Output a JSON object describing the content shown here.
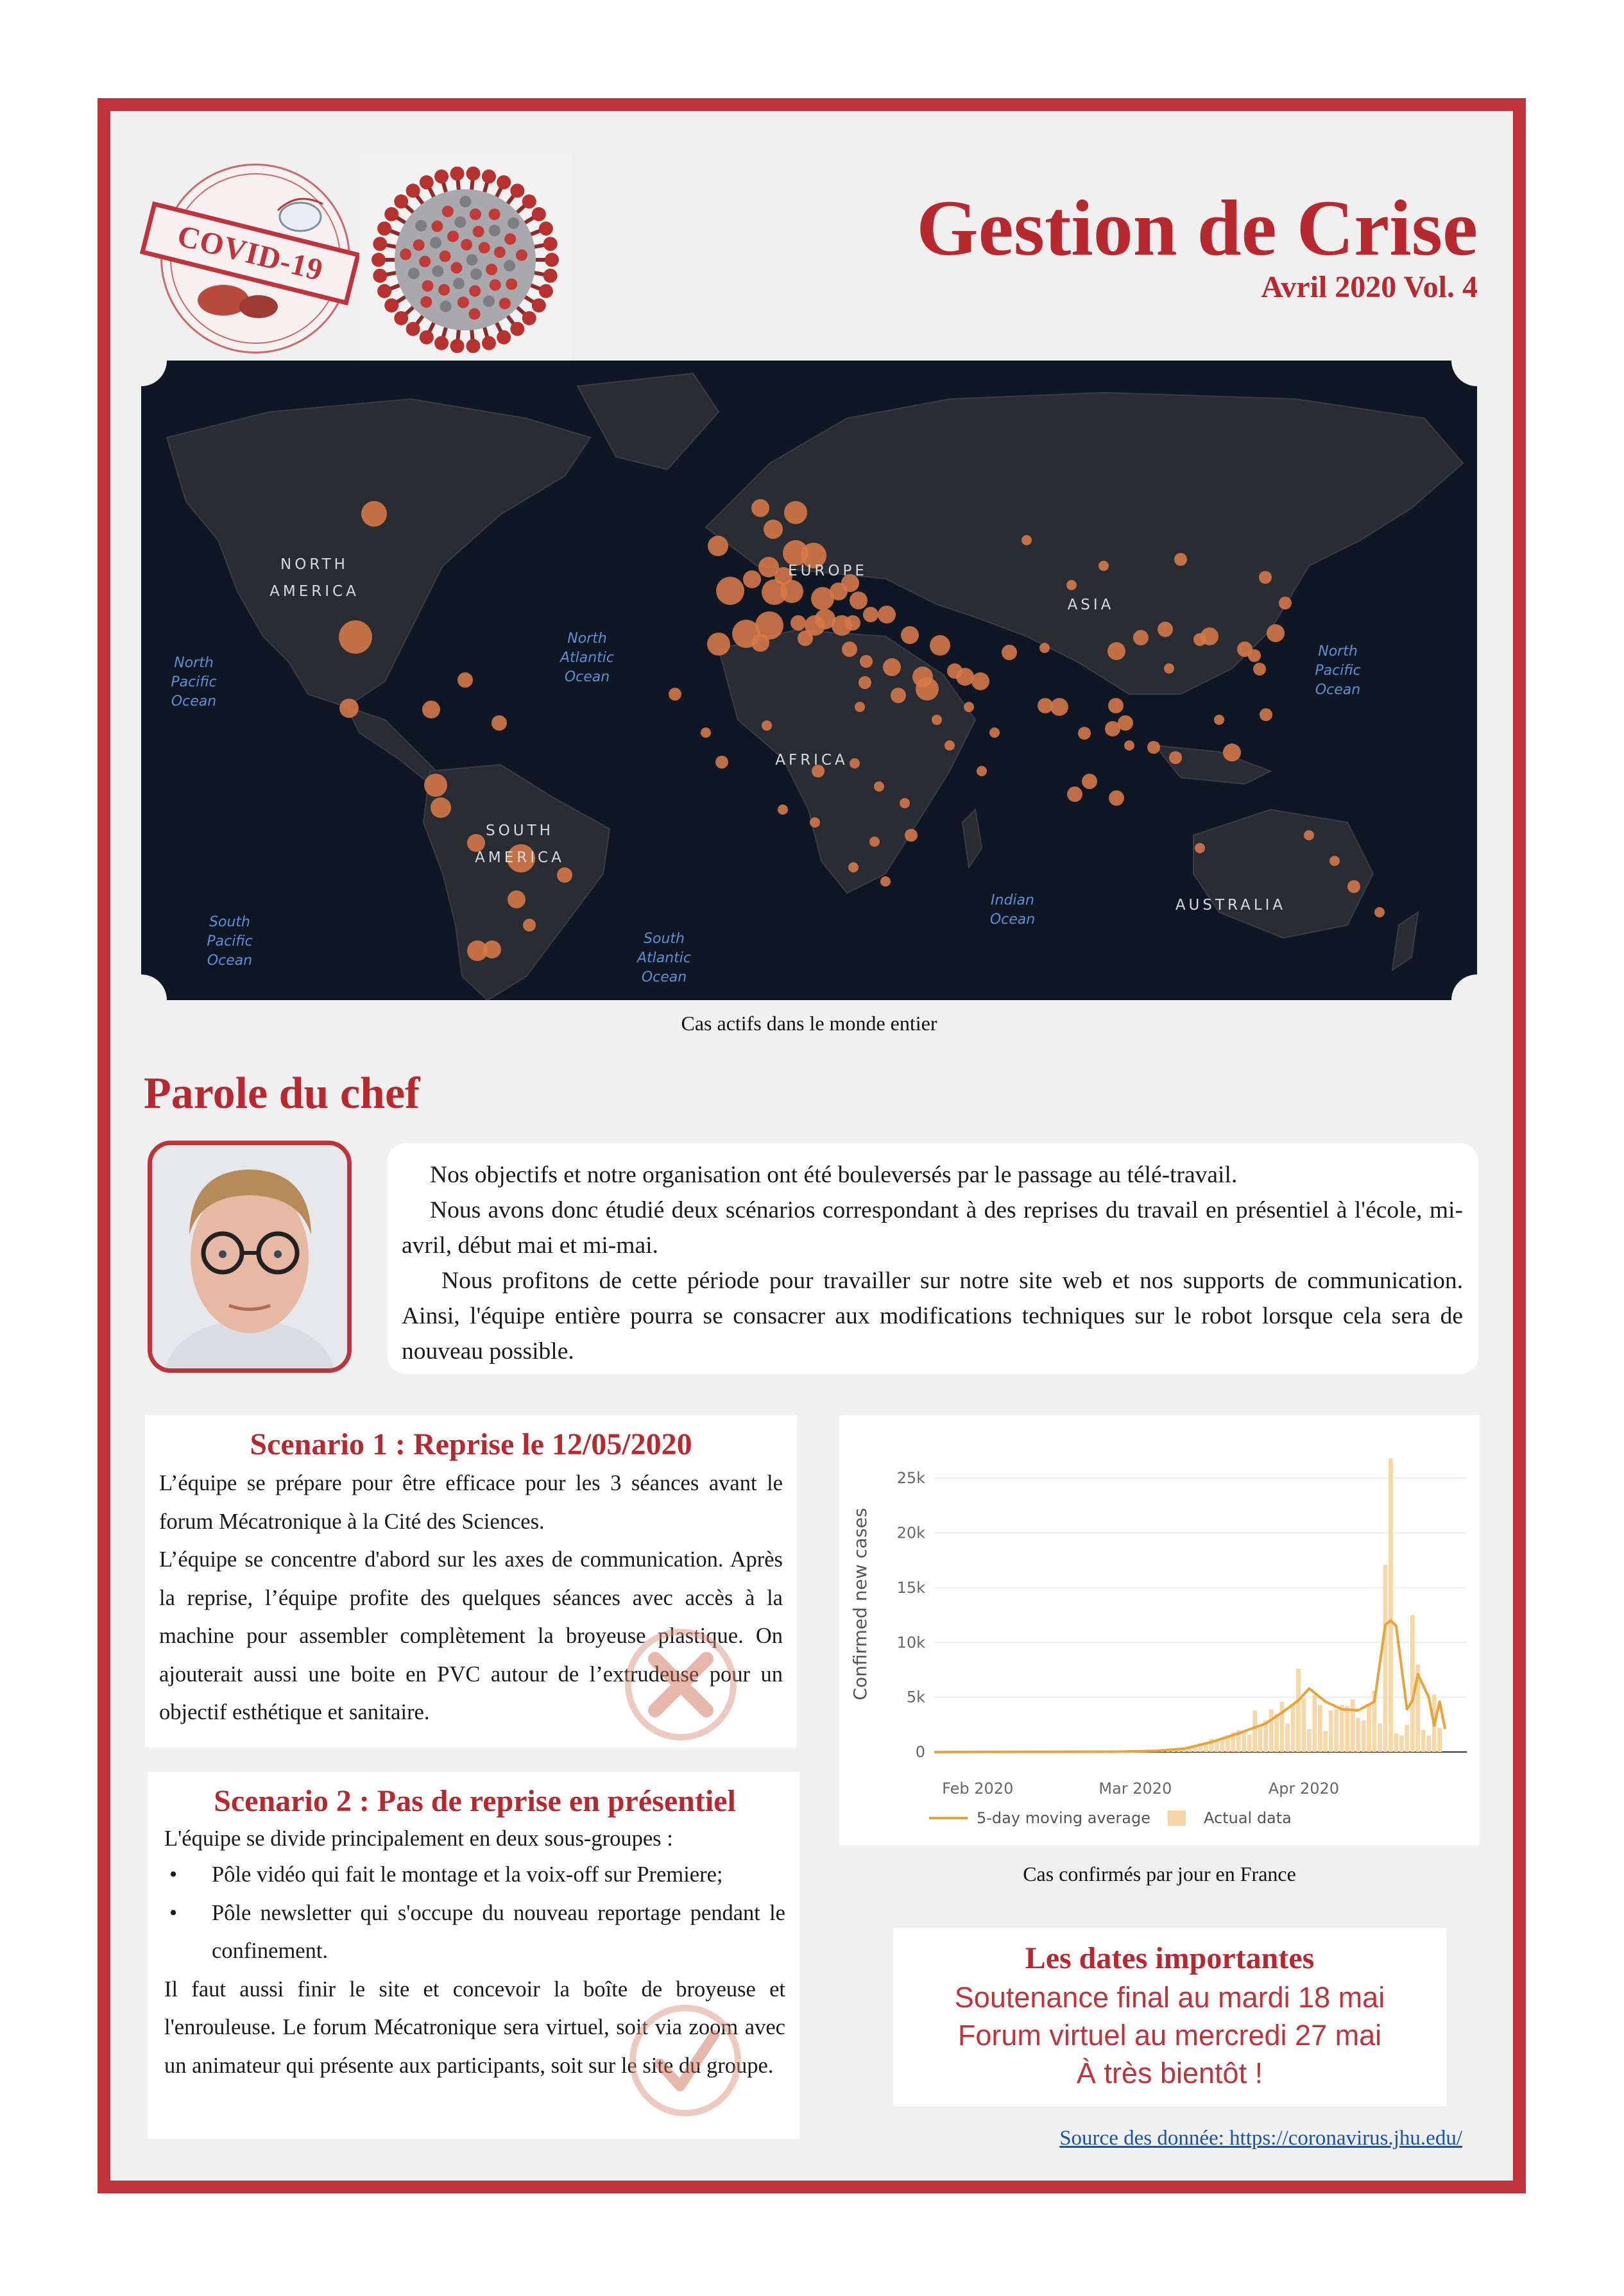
{
  "header": {
    "stamp_label": "COVID-19",
    "title": "Gestion de Crise",
    "issue": "Avril 2020  Vol. 4"
  },
  "map": {
    "caption": "Cas actifs dans le monde entier",
    "labels": {
      "north_america": "NORTH\nAMERICA",
      "south_america": "SOUTH\nAMERICA",
      "europe": "EUROPE",
      "asia": "ASIA",
      "africa": "AFRICA",
      "australia": "AUSTRALIA",
      "north_pacific_west": "North\nPacific\nOcean",
      "north_atlantic": "North\nAtlantic\nOcean",
      "north_pacific_east": "North\nPacific\nOcean",
      "south_pacific": "South\nPacific\nOcean",
      "south_atlantic": "South\nAtlantic\nOcean",
      "indian": "Indian\nOcean"
    },
    "colors": {
      "ocean": "#0f1725",
      "land": "#2a2c33",
      "bubble": "#d87a4a"
    }
  },
  "chef": {
    "section_title": "Parole du chef",
    "p1": "Nos objectifs et notre organisation ont été bouleversés par le passage au télé-travail.",
    "p2": "Nous avons donc étudié deux scénarios correspondant à des reprises du travail en présentiel à l'école, mi-avril, début mai et mi-mai.",
    "p3": "Nous profitons de cette période pour travailler sur notre site web et nos supports de communication. Ainsi, l'équipe entière pourra se consacrer aux modifications techniques sur le robot lorsque cela sera de nouveau possible."
  },
  "scenario1": {
    "title": "Scenario 1 : Reprise le 12/05/2020",
    "p1": "L’équipe se prépare pour être efficace pour les 3 séances avant le forum Mécatronique à la Cité des Sciences.",
    "p2": "L’équipe se concentre d'abord sur les axes de communication. Après la reprise, l’équipe profite des quelques séances avec accès à la machine pour assembler complètement la broyeuse plastique. On ajouterait aussi une boite en PVC autour de l’extrudeuse pour un objectif esthétique et sanitaire."
  },
  "scenario2": {
    "title": "Scenario 2 : Pas de reprise en présentiel",
    "intro": "L'équipe se divide principalement en deux sous-groupes :",
    "bullet": "•",
    "items": [
      "Pôle vidéo qui fait le montage et la voix-off sur Premiere;",
      "Pôle newsletter qui s'occupe du nouveau reportage pendant le confinement."
    ],
    "outro": "Il faut aussi finir le site et concevoir la boîte de broyeuse et l'enrouleuse. Le forum Mécatronique sera virtuel, soit via zoom avec un animateur qui présente aux participants, soit  sur le site du groupe."
  },
  "chart_caption": "Cas confirmés par jour en France",
  "chart_data": {
    "type": "bar",
    "title": "",
    "xlabel": "",
    "ylabel": "Confirmed new cases",
    "ylim": [
      0,
      27000
    ],
    "yticks": [
      "0",
      "5k",
      "10k",
      "15k",
      "20k",
      "25k"
    ],
    "ytick_values": [
      0,
      5000,
      10000,
      15000,
      20000,
      25000
    ],
    "xticks": [
      "Feb 2020",
      "Mar 2020",
      "Apr 2020"
    ],
    "xtick_positions": [
      "2020-02-01",
      "2020-03-01",
      "2020-04-01"
    ],
    "x_start": "2020-01-24",
    "x_end": "2020-05-01",
    "legend": [
      "5-day moving average",
      "Actual data"
    ],
    "legend_position": "bottom",
    "colors": {
      "line": "#e8a33a",
      "bars": "#f6d7a7"
    },
    "series": [
      {
        "name": "Actual data",
        "points": [
          [
            "2020-02-27",
            20
          ],
          [
            "2020-02-28",
            40
          ],
          [
            "2020-02-29",
            43
          ],
          [
            "2020-03-01",
            30
          ],
          [
            "2020-03-02",
            60
          ],
          [
            "2020-03-03",
            45
          ],
          [
            "2020-03-04",
            80
          ],
          [
            "2020-03-05",
            140
          ],
          [
            "2020-03-06",
            190
          ],
          [
            "2020-03-07",
            200
          ],
          [
            "2020-03-08",
            330
          ],
          [
            "2020-03-09",
            290
          ],
          [
            "2020-03-10",
            370
          ],
          [
            "2020-03-11",
            500
          ],
          [
            "2020-03-12",
            600
          ],
          [
            "2020-03-13",
            800
          ],
          [
            "2020-03-14",
            900
          ],
          [
            "2020-03-15",
            1200
          ],
          [
            "2020-03-16",
            1100
          ],
          [
            "2020-03-17",
            1300
          ],
          [
            "2020-03-18",
            1500
          ],
          [
            "2020-03-19",
            1800
          ],
          [
            "2020-03-20",
            2000
          ],
          [
            "2020-03-21",
            1900
          ],
          [
            "2020-03-22",
            1600
          ],
          [
            "2020-03-23",
            3800
          ],
          [
            "2020-03-24",
            2500
          ],
          [
            "2020-03-25",
            2900
          ],
          [
            "2020-03-26",
            3900
          ],
          [
            "2020-03-27",
            3500
          ],
          [
            "2020-03-28",
            4600
          ],
          [
            "2020-03-29",
            2600
          ],
          [
            "2020-03-30",
            4400
          ],
          [
            "2020-03-31",
            7600
          ],
          [
            "2020-04-01",
            4900
          ],
          [
            "2020-04-02",
            2100
          ],
          [
            "2020-04-03",
            5200
          ],
          [
            "2020-04-04",
            4300
          ],
          [
            "2020-04-05",
            1900
          ],
          [
            "2020-04-06",
            3800
          ],
          [
            "2020-04-07",
            3900
          ],
          [
            "2020-04-08",
            4300
          ],
          [
            "2020-04-09",
            4200
          ],
          [
            "2020-04-10",
            4800
          ],
          [
            "2020-04-11",
            3100
          ],
          [
            "2020-04-12",
            2900
          ],
          [
            "2020-04-13",
            4400
          ],
          [
            "2020-04-14",
            5600
          ],
          [
            "2020-04-15",
            2600
          ],
          [
            "2020-04-16",
            17100
          ],
          [
            "2020-04-17",
            26800
          ],
          [
            "2020-04-18",
            1700
          ],
          [
            "2020-04-19",
            1500
          ],
          [
            "2020-04-20",
            2500
          ],
          [
            "2020-04-21",
            12500
          ],
          [
            "2020-04-22",
            8000
          ],
          [
            "2020-04-23",
            2000
          ],
          [
            "2020-04-24",
            1500
          ],
          [
            "2020-04-25",
            5200
          ],
          [
            "2020-04-26",
            2200
          ]
        ]
      },
      {
        "name": "5-day moving average",
        "points": [
          [
            "2020-01-24",
            0
          ],
          [
            "2020-02-27",
            30
          ],
          [
            "2020-03-05",
            110
          ],
          [
            "2020-03-10",
            300
          ],
          [
            "2020-03-15",
            900
          ],
          [
            "2020-03-20",
            1700
          ],
          [
            "2020-03-25",
            2600
          ],
          [
            "2020-03-28",
            3600
          ],
          [
            "2020-03-31",
            4700
          ],
          [
            "2020-04-02",
            5800
          ],
          [
            "2020-04-05",
            4600
          ],
          [
            "2020-04-08",
            3900
          ],
          [
            "2020-04-11",
            3800
          ],
          [
            "2020-04-14",
            4600
          ],
          [
            "2020-04-16",
            11600
          ],
          [
            "2020-04-17",
            12000
          ],
          [
            "2020-04-18",
            11500
          ],
          [
            "2020-04-20",
            3900
          ],
          [
            "2020-04-21",
            4700
          ],
          [
            "2020-04-22",
            7100
          ],
          [
            "2020-04-24",
            5000
          ],
          [
            "2020-04-25",
            2400
          ],
          [
            "2020-04-26",
            4600
          ],
          [
            "2020-04-27",
            2100
          ]
        ]
      }
    ]
  },
  "dates": {
    "title": "Les dates importantes",
    "line1": "Soutenance final au mardi 18 mai",
    "line2": "Forum virtuel au mercredi 27 mai",
    "line3": "À très bientôt !"
  },
  "source": "Source des donnée: https://coronavirus.jhu.edu/"
}
